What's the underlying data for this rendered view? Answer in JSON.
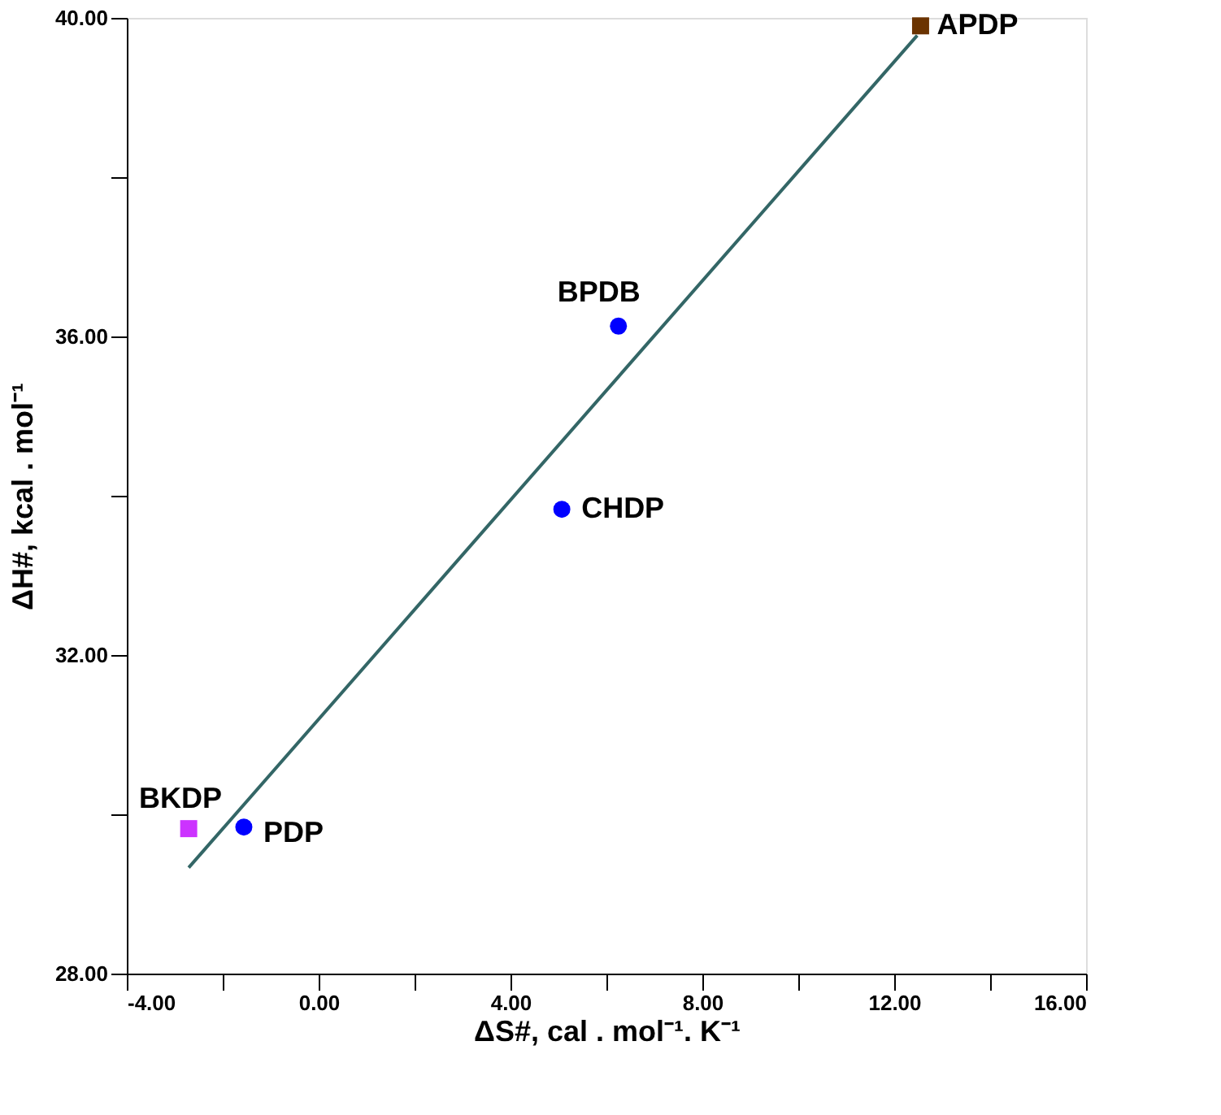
{
  "chart_data": {
    "type": "scatter",
    "xlabel": "ΔS#, cal . mol⁻¹. K⁻¹",
    "ylabel": "ΔH#, kcal . mol⁻¹",
    "xlim": [
      -4,
      16
    ],
    "ylim": [
      28,
      40
    ],
    "xticks": [
      {
        "value": -4,
        "label": "-4.00"
      },
      {
        "value": -2,
        "label": null
      },
      {
        "value": 0,
        "label": "0.00"
      },
      {
        "value": 2,
        "label": null
      },
      {
        "value": 4,
        "label": "4.00"
      },
      {
        "value": 6,
        "label": null
      },
      {
        "value": 8,
        "label": "8.00"
      },
      {
        "value": 10,
        "label": null
      },
      {
        "value": 12,
        "label": "12.00"
      },
      {
        "value": 14,
        "label": null
      },
      {
        "value": 16,
        "label": "16.00"
      }
    ],
    "yticks": [
      {
        "value": 28,
        "label": "28.00"
      },
      {
        "value": 30,
        "label": null
      },
      {
        "value": 32,
        "label": "32.00"
      },
      {
        "value": 34,
        "label": null
      },
      {
        "value": 36,
        "label": "36.00"
      },
      {
        "value": 38,
        "label": null
      },
      {
        "value": 40,
        "label": "40.00"
      }
    ],
    "grid": false,
    "series": [
      {
        "name": "BKDP",
        "color": "#cc33ff",
        "marker": "square",
        "x": [
          -2.71
        ],
        "values": [
          29.82
        ]
      },
      {
        "name": "PDP",
        "color": "#0000ff",
        "marker": "circle",
        "x": [
          -1.56
        ],
        "values": [
          29.84
        ]
      },
      {
        "name": "CHDP",
        "color": "#0000ff",
        "marker": "circle",
        "x": [
          5.07
        ],
        "values": [
          33.83
        ]
      },
      {
        "name": "BPDB",
        "color": "#0000ff",
        "marker": "circle",
        "x": [
          6.25
        ],
        "values": [
          36.13
        ]
      },
      {
        "name": "APDP",
        "color": "#6b3300",
        "marker": "square",
        "x": [
          12.55
        ],
        "values": [
          39.9
        ]
      },
      {
        "type": "line",
        "color": "#336666",
        "marker": "none",
        "x": [
          -2.71,
          12.48
        ],
        "values": [
          29.33,
          39.78
        ]
      }
    ]
  }
}
